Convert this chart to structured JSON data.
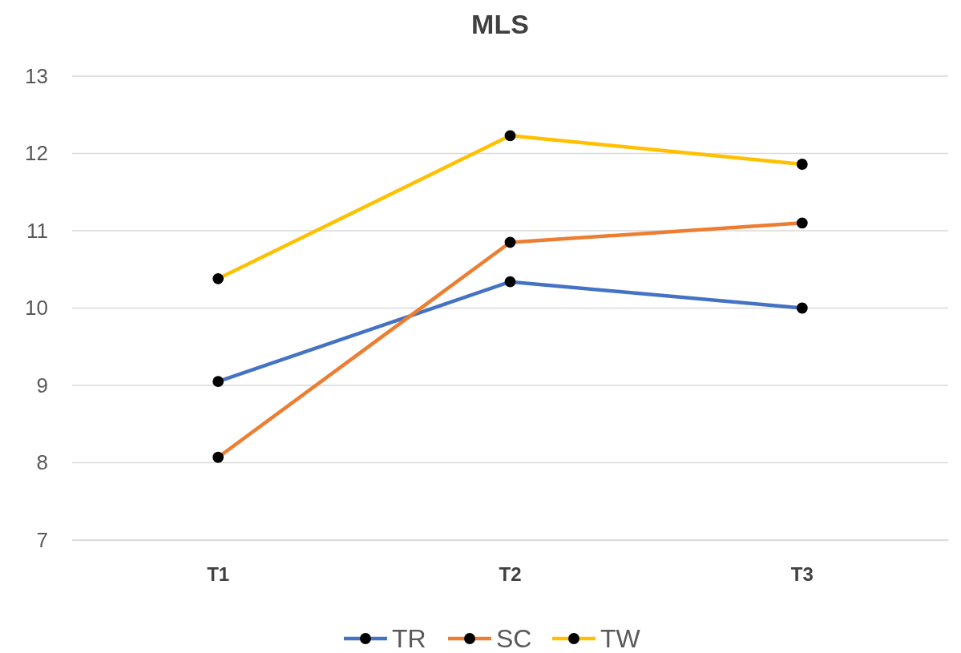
{
  "chart_data": {
    "type": "line",
    "title": "MLS",
    "categories": [
      "T1",
      "T2",
      "T3"
    ],
    "series": [
      {
        "name": "TR",
        "color": "#4472c4",
        "values": [
          9.05,
          10.34,
          10.0
        ]
      },
      {
        "name": "SC",
        "color": "#ed7d31",
        "values": [
          8.07,
          10.85,
          11.1
        ]
      },
      {
        "name": "TW",
        "color": "#ffc000",
        "values": [
          10.38,
          12.23,
          11.86
        ]
      }
    ],
    "ylim": [
      7,
      13
    ],
    "yticks": [
      7,
      8,
      9,
      10,
      11,
      12,
      13
    ],
    "grid": "y",
    "legend": "bottom",
    "marker": "circle",
    "line_style": "solid"
  }
}
